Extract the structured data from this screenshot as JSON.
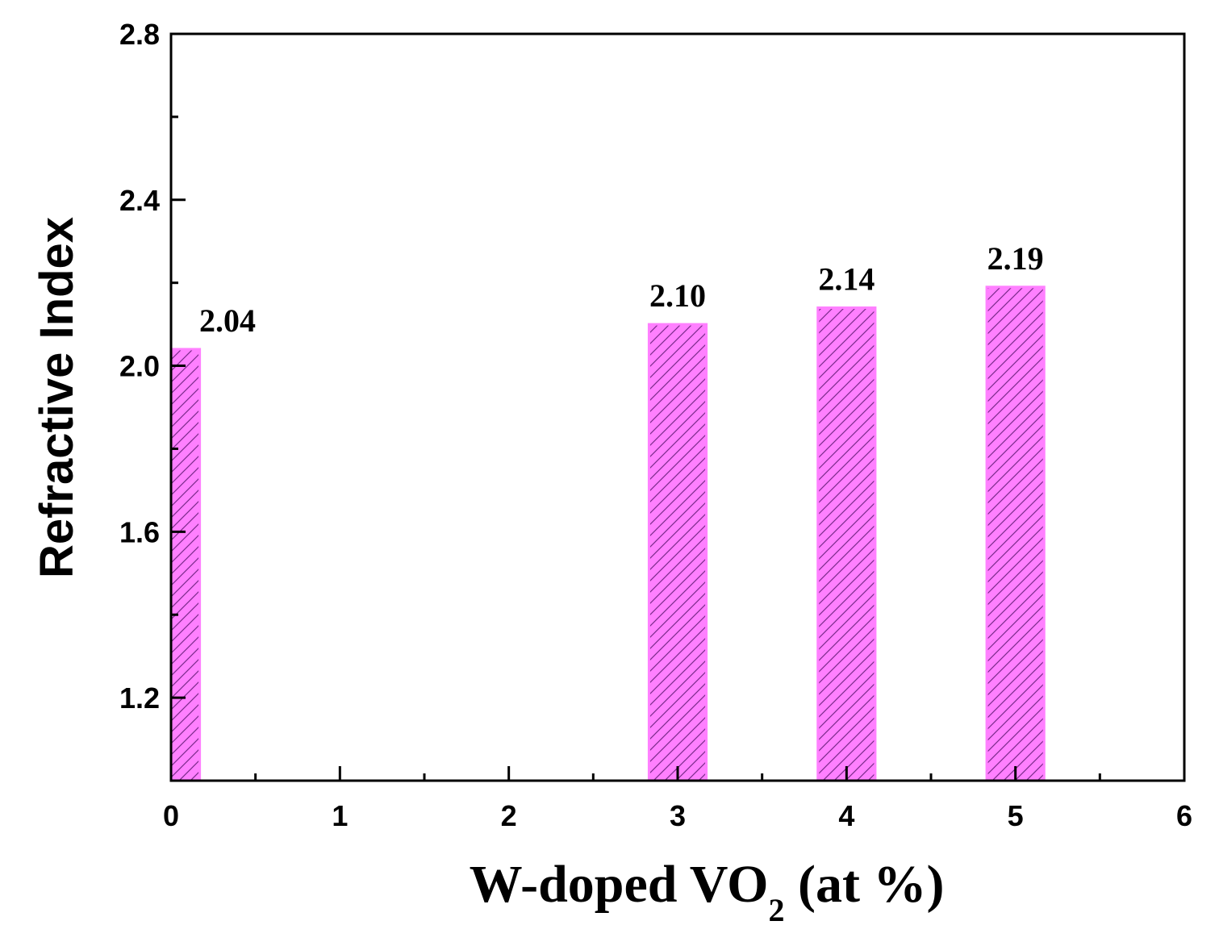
{
  "chart_data": {
    "type": "bar",
    "x": [
      0,
      3,
      4,
      5
    ],
    "values": [
      2.04,
      2.1,
      2.14,
      2.19
    ],
    "data_labels": [
      "2.04",
      "2.10",
      "2.14",
      "2.19"
    ],
    "xlabel_main": "W-doped VO",
    "xlabel_sub": "2",
    "xlabel_tail": " (at %)",
    "ylabel": "Refractive Index",
    "xlim": [
      0,
      6
    ],
    "ylim": [
      1.0,
      2.8
    ],
    "x_ticks": [
      0,
      1,
      2,
      3,
      4,
      5,
      6
    ],
    "x_tick_labels": [
      "0",
      "1",
      "2",
      "3",
      "4",
      "5",
      "6"
    ],
    "y_ticks": [
      1.2,
      1.6,
      2.0,
      2.4,
      2.8
    ],
    "y_tick_labels": [
      "1.2",
      "1.6",
      "2.0",
      "2.4",
      "2.8"
    ],
    "bar_color": "#ff80ff",
    "bar_hatch_color": "#7a2a8a",
    "grid": false,
    "legend": "none"
  }
}
